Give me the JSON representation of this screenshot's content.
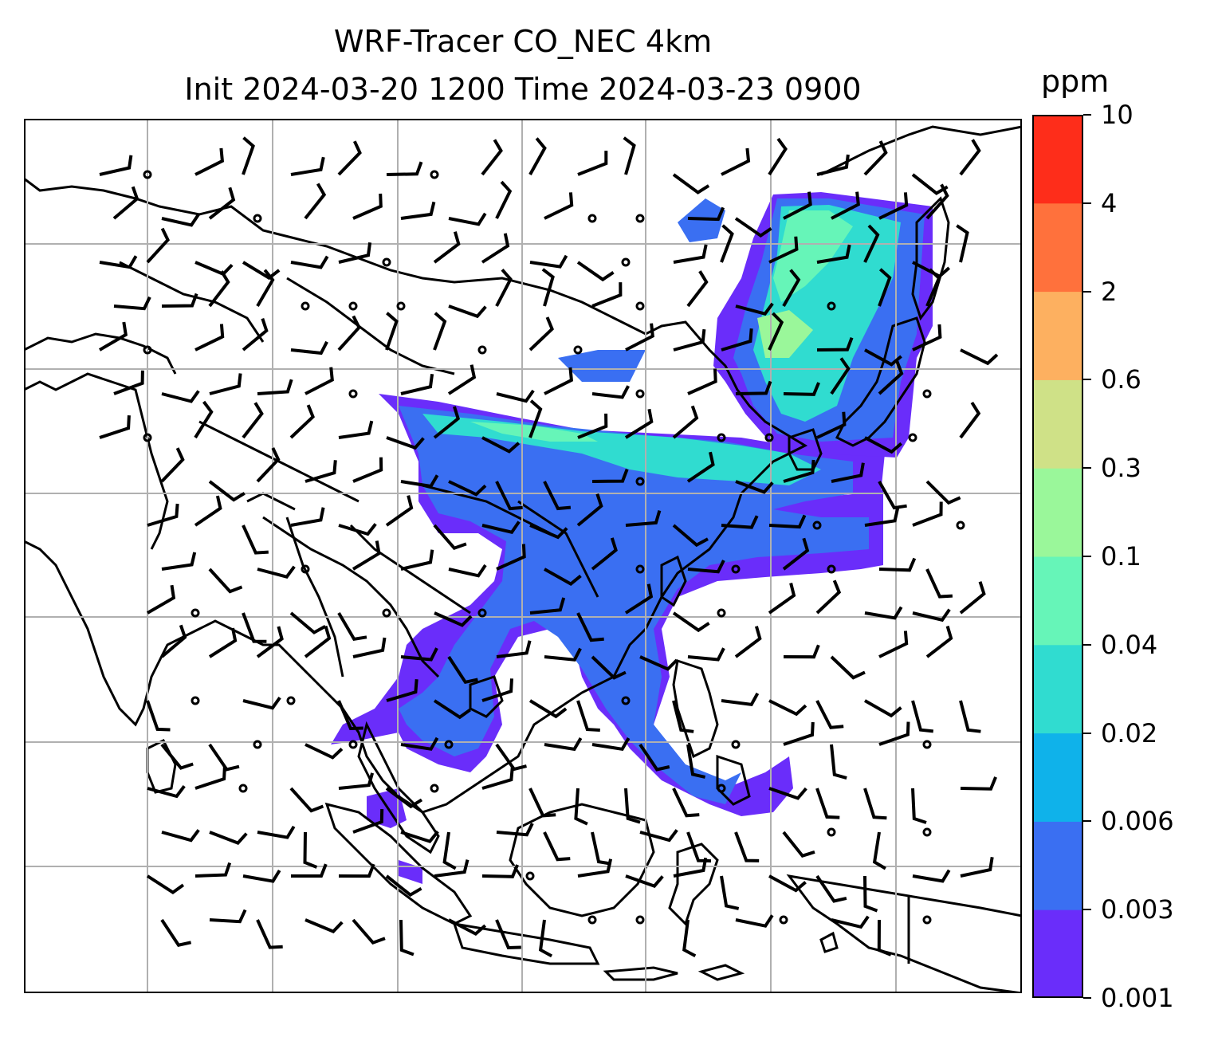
{
  "title": {
    "line1": "WRF-Tracer CO_NEC 4km",
    "line2": "Init 2024-03-20 1200 Time 2024-03-23 0900"
  },
  "colorbar": {
    "units": "ppm",
    "levels": [
      "0.001",
      "0.003",
      "0.006",
      "0.02",
      "0.04",
      "0.1",
      "0.3",
      "0.6",
      "2",
      "4",
      "10"
    ],
    "colors": [
      "#6a2dfa",
      "#3a6ff2",
      "#0fb2ea",
      "#30dcd0",
      "#66f5b8",
      "#9af79a",
      "#cfe187",
      "#fdb060",
      "#ff713c",
      "#fe2d1a"
    ]
  },
  "map": {
    "gridlines": true,
    "coastlines_color": "#000000",
    "gridline_color": "#b0b0b0",
    "wind_barbs": true
  }
}
